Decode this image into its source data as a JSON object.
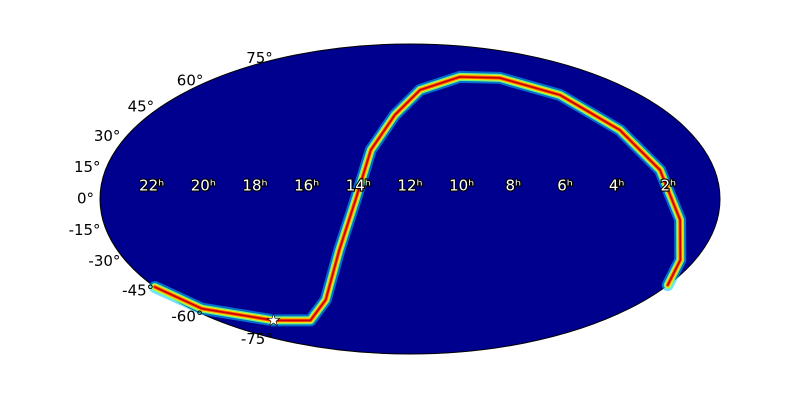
{
  "chart_data": {
    "type": "mollweide",
    "background_color": "#00008f",
    "xticks": [
      {
        "value": 22,
        "label": "22ʰ"
      },
      {
        "value": 20,
        "label": "20ʰ"
      },
      {
        "value": 18,
        "label": "18ʰ"
      },
      {
        "value": 16,
        "label": "16ʰ"
      },
      {
        "value": 14,
        "label": "14ʰ"
      },
      {
        "value": 12,
        "label": "12ʰ"
      },
      {
        "value": 10,
        "label": "10ʰ"
      },
      {
        "value": 8,
        "label": "8ʰ"
      },
      {
        "value": 6,
        "label": "6ʰ"
      },
      {
        "value": 4,
        "label": "4ʰ"
      },
      {
        "value": 2,
        "label": "2ʰ"
      }
    ],
    "yticks": [
      {
        "value": 75,
        "label": "75°"
      },
      {
        "value": 60,
        "label": "60°"
      },
      {
        "value": 45,
        "label": "45°"
      },
      {
        "value": 30,
        "label": "30°"
      },
      {
        "value": 15,
        "label": "15°"
      },
      {
        "value": 0,
        "label": "0°"
      },
      {
        "value": -15,
        "label": "-15°"
      },
      {
        "value": -30,
        "label": "-30°"
      },
      {
        "value": -45,
        "label": "-45°"
      },
      {
        "value": -60,
        "label": "-60°"
      },
      {
        "value": -75,
        "label": "-75°"
      }
    ],
    "series": [
      {
        "colors": [
          "#00c8ff",
          "#7cff7a",
          "#ffe600",
          "#ff5a00",
          "#c80000"
        ],
        "x": [
          24.0,
          23.4,
          20.5,
          18.2,
          16.3,
          14.9,
          14.1,
          13.6,
          12.7,
          11.45,
          8.87,
          6.43,
          4.17,
          2.93,
          2.15,
          1.45,
          0.62,
          0.0
        ],
        "y": [
          -43,
          -55,
          -62,
          -62,
          -50,
          -24.3,
          0,
          23.3,
          40.9,
          54.6,
          62.4,
          61.8,
          51.7,
          33.2,
          13.7,
          -9.8,
          -29.2,
          -42
        ]
      }
    ],
    "marker": {
      "ra": 20.5,
      "dec": -62,
      "color": "#ffffff"
    }
  }
}
